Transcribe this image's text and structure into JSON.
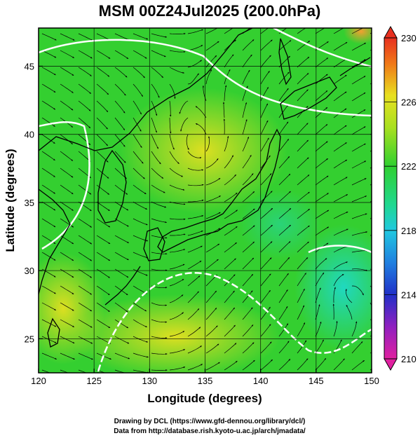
{
  "title": "MSM 00Z24Jul2025 (200.0hPa)",
  "xlabel": "Longitude (degrees)",
  "ylabel": "Latitude  (degrees)",
  "credits": [
    "Drawing by DCL (https://www.gfd-dennou.org/library/dcl/)",
    "Data from http://database.rish.kyoto-u.ac.jp/arch/jmadata/"
  ],
  "colors": {
    "ocean_green": "#22d033",
    "warm_yellow": "#e8e020",
    "cool_cyan": "#24d8b0",
    "coast": "#000000",
    "contour": "#ffffff",
    "streamline": "#000000"
  },
  "chart_data": {
    "type": "heatmap",
    "xlim": [
      120,
      150
    ],
    "ylim": [
      22.5,
      47.8
    ],
    "x_ticks": [
      120,
      125,
      130,
      135,
      140,
      145,
      150
    ],
    "y_ticks": [
      25,
      30,
      35,
      40,
      45
    ],
    "grid": true,
    "colorbar": {
      "min": 210,
      "max": 230,
      "tick_labels": [
        "230",
        "226",
        "222",
        "218",
        "214",
        "210"
      ],
      "tick_values": [
        230,
        226,
        222,
        218,
        214,
        210
      ]
    }
  }
}
